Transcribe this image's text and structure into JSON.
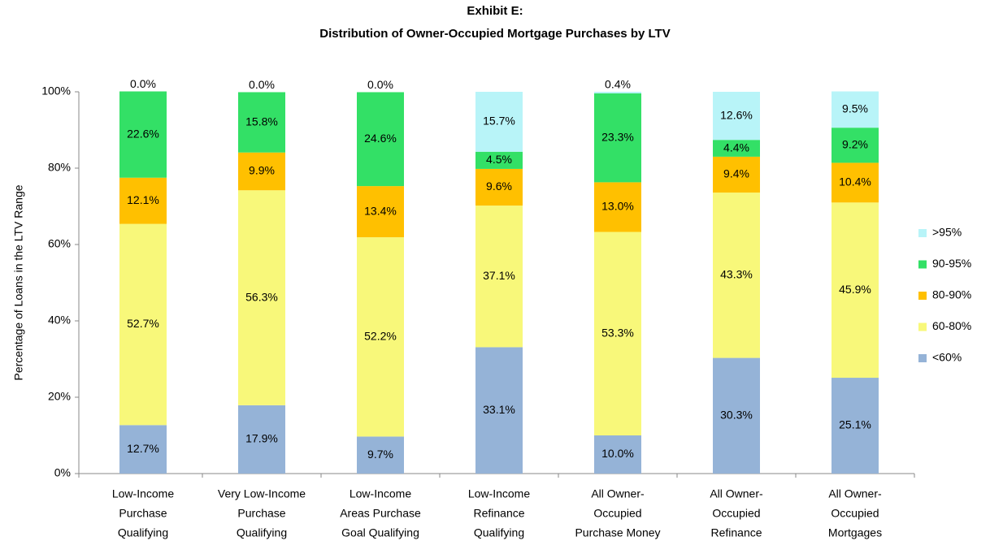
{
  "chart_data": {
    "type": "stacked_bar",
    "title": "Exhibit E:",
    "subtitle": "Distribution of Owner-Occupied Mortgage Purchases by LTV",
    "y_label": "Percentage of Loans in the LTV Range",
    "categories": [
      [
        "Low-Income",
        "Purchase",
        "Qualifying"
      ],
      [
        "Very Low-Income",
        "Purchase",
        "Qualifying"
      ],
      [
        "Low-Income",
        "Areas Purchase",
        "Goal Qualifying"
      ],
      [
        "Low-Income",
        "Refinance",
        "Qualifying"
      ],
      [
        "All Owner-",
        "Occupied",
        "Purchase Money"
      ],
      [
        "All Owner-",
        "Occupied",
        "Refinance"
      ],
      [
        "All Owner-",
        "Occupied",
        "Mortgages"
      ]
    ],
    "series": [
      {
        "name": "<60%",
        "color": "#95b3d7",
        "values": [
          12.7,
          17.9,
          9.7,
          33.1,
          10.0,
          30.3,
          25.1
        ],
        "value_labels": [
          "12.7%",
          "17.9%",
          "9.7%",
          "33.1%",
          "10.0%",
          "30.3%",
          "25.1%"
        ]
      },
      {
        "name": "60-80%",
        "color": "#f8f87a",
        "values": [
          52.7,
          56.3,
          52.2,
          37.1,
          53.3,
          43.3,
          45.9
        ],
        "value_labels": [
          "52.7%",
          "56.3%",
          "52.2%",
          "37.1%",
          "53.3%",
          "43.3%",
          "45.9%"
        ]
      },
      {
        "name": "80-90%",
        "color": "#ffc000",
        "values": [
          12.1,
          9.9,
          13.4,
          9.6,
          13.0,
          9.4,
          10.4
        ],
        "value_labels": [
          "12.1%",
          "9.9%",
          "13.4%",
          "9.6%",
          "13.0%",
          "9.4%",
          "10.4%"
        ]
      },
      {
        "name": "90-95%",
        "color": "#33e066",
        "values": [
          22.6,
          15.8,
          24.6,
          4.5,
          23.3,
          4.4,
          9.2
        ],
        "value_labels": [
          "22.6%",
          "15.8%",
          "24.6%",
          "4.5%",
          "23.3%",
          "4.4%",
          "9.2%"
        ]
      },
      {
        "name": ">95%",
        "color": "#b8f4f8",
        "values": [
          0.0,
          0.0,
          0.0,
          15.7,
          0.4,
          12.6,
          9.5
        ],
        "value_labels": [
          "0.0%",
          "0.0%",
          "0.0%",
          "15.7%",
          "0.4%",
          "12.6%",
          "9.5%"
        ]
      }
    ],
    "ylim": [
      0,
      100
    ],
    "yticks": [
      {
        "value": 0,
        "label": "0%"
      },
      {
        "value": 20,
        "label": "20%"
      },
      {
        "value": 40,
        "label": "40%"
      },
      {
        "value": 60,
        "label": "60%"
      },
      {
        "value": 80,
        "label": "80%"
      },
      {
        "value": 100,
        "label": "100%"
      }
    ],
    "legend": "right"
  }
}
